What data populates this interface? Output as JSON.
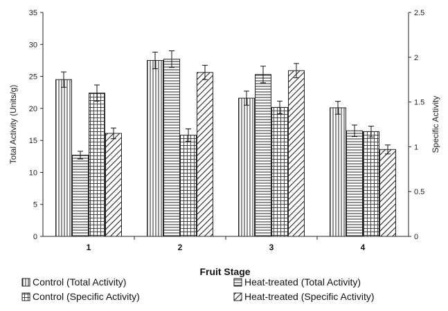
{
  "chart_data": {
    "type": "bar",
    "title": "",
    "xlabel": "Fruit Stage",
    "ylabel": "Total Activity (Units/g)",
    "y2label": "Specific Activity",
    "categories": [
      "1",
      "2",
      "3",
      "4"
    ],
    "ylim": [
      0,
      35
    ],
    "y2lim": [
      0,
      2.5
    ],
    "yticks": [
      "0",
      "5",
      "10",
      "15",
      "20",
      "25",
      "30",
      "35"
    ],
    "y2ticks": [
      "0",
      "0.5",
      "1",
      "1.5",
      "2",
      "2.5"
    ],
    "grid": false,
    "legend_position": "bottom",
    "series": [
      {
        "name": "Control (Total Activity)",
        "axis": "left",
        "pattern": "vertical",
        "values": [
          24.5,
          27.5,
          21.6,
          20.1
        ],
        "errors": [
          1.2,
          1.3,
          1.1,
          1.0
        ]
      },
      {
        "name": "Heat-treated (Total Activity)",
        "axis": "left",
        "pattern": "horizontal",
        "values": [
          12.7,
          27.7,
          25.3,
          16.5
        ],
        "errors": [
          0.6,
          1.3,
          1.3,
          0.9
        ]
      },
      {
        "name": "Control (Specific Activity)",
        "axis": "right",
        "pattern": "grid",
        "values": [
          1.6,
          1.13,
          1.44,
          1.17
        ],
        "errors": [
          0.09,
          0.07,
          0.07,
          0.06
        ]
      },
      {
        "name": "Heat-treated (Specific Activity)",
        "axis": "right",
        "pattern": "diagonal",
        "values": [
          1.15,
          1.83,
          1.85,
          0.97
        ],
        "errors": [
          0.06,
          0.08,
          0.08,
          0.05
        ]
      }
    ]
  }
}
